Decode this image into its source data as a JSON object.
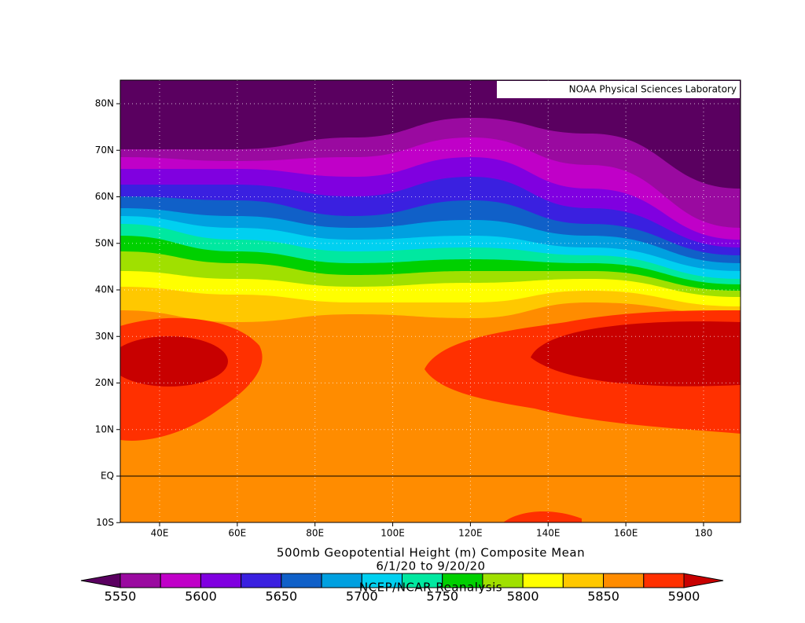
{
  "map": {
    "credit": "NOAA Physical Sciences Laboratory",
    "lat_labels": [
      "80N",
      "70N",
      "60N",
      "50N",
      "40N",
      "30N",
      "20N",
      "10N",
      "EQ",
      "10S"
    ],
    "lon_labels": [
      "40E",
      "60E",
      "80E",
      "100E",
      "120E",
      "140E",
      "160E",
      "180"
    ],
    "title_lines": [
      "500mb Geopotential Height (m) Composite Mean",
      "6/1/20  to 9/20/20",
      "NCEP/NCAR Reanalysis"
    ],
    "colorbar": {
      "below_color": "#5a0060",
      "colors": [
        "#9a0aa0",
        "#c000c8",
        "#8000e0",
        "#3a20e0",
        "#1060c8",
        "#00a0e0",
        "#00d0f0",
        "#00e8a0",
        "#00d000",
        "#a0e000",
        "#ffff00",
        "#ffc800",
        "#ff8c00",
        "#ff3000"
      ],
      "above_color": "#c80000",
      "ticks": [
        5550,
        5600,
        5650,
        5700,
        5750,
        5800,
        5850,
        5900
      ]
    }
  }
}
